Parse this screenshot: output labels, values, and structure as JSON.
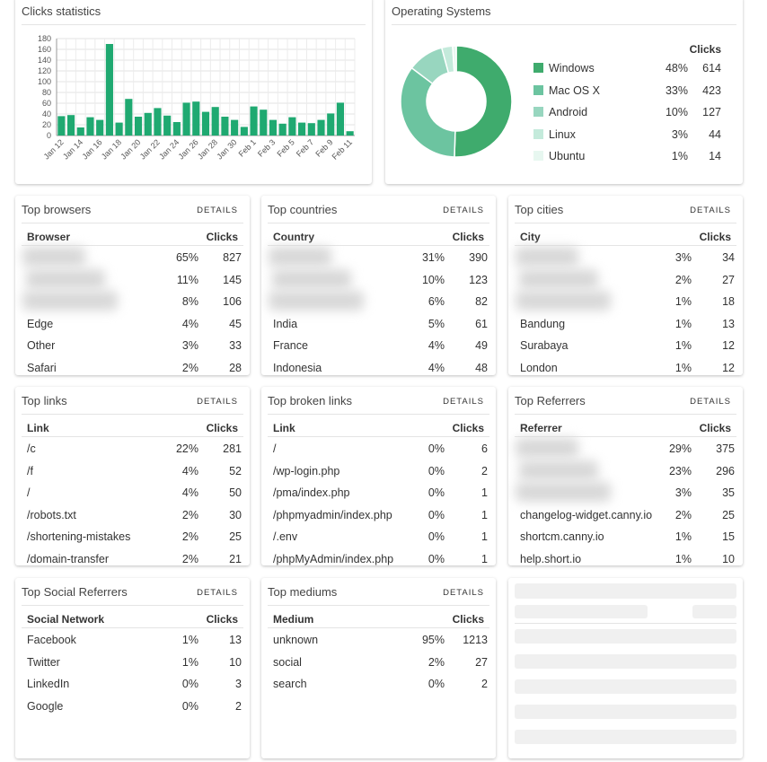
{
  "chart_data": [
    {
      "type": "bar",
      "title": "Clicks statistics",
      "categories": [
        "Jan 12",
        null,
        "Jan 14",
        null,
        "Jan 16",
        null,
        "Jan 18",
        null,
        "Jan 20",
        null,
        "Jan 22",
        null,
        "Jan 24",
        null,
        "Jan 26",
        null,
        "Jan 28",
        null,
        "Jan 30",
        null,
        "Feb 1",
        null,
        "Feb 3",
        null,
        "Feb 5",
        null,
        "Feb 7",
        null,
        "Feb 9",
        null,
        "Feb 11"
      ],
      "values": [
        36,
        38,
        15,
        34,
        29,
        170,
        24,
        68,
        35,
        42,
        51,
        37,
        25,
        61,
        63,
        44,
        53,
        35,
        29,
        16,
        54,
        48,
        29,
        22,
        34,
        24,
        23,
        29,
        41,
        61,
        8
      ],
      "color": "#1fa971",
      "ylim": [
        0,
        180
      ],
      "yticks": [
        0,
        20,
        40,
        60,
        80,
        100,
        120,
        140,
        160,
        180
      ],
      "grid": true
    },
    {
      "type": "pie",
      "title": "Operating Systems",
      "value_header": "Clicks",
      "categories": [
        "Windows",
        "Mac OS X",
        "Android",
        "Linux",
        "Ubuntu"
      ],
      "values": [
        48,
        33,
        10,
        3,
        1
      ],
      "value_labels": [
        "48%",
        "33%",
        "10%",
        "3%",
        "1%"
      ],
      "clicks": [
        614,
        423,
        127,
        44,
        14
      ],
      "colors": [
        "#3fab6d",
        "#6cc4a0",
        "#98d6bf",
        "#c4eadb",
        "#e7f7f0"
      ]
    }
  ],
  "cards": [
    {
      "title": "Top browsers",
      "action": "DETAILS",
      "columns": [
        "Browser",
        "Clicks"
      ],
      "rows": [
        [
          null,
          "65%",
          827
        ],
        [
          null,
          "11%",
          145
        ],
        [
          null,
          "8%",
          106
        ],
        [
          "Edge",
          "4%",
          45
        ],
        [
          "Other",
          "3%",
          33
        ],
        [
          "Safari",
          "2%",
          28
        ]
      ]
    },
    {
      "title": "Top countries",
      "action": "DETAILS",
      "columns": [
        "Country",
        "Clicks"
      ],
      "rows": [
        [
          null,
          "31%",
          390
        ],
        [
          null,
          "10%",
          123
        ],
        [
          null,
          "6%",
          82
        ],
        [
          "India",
          "5%",
          61
        ],
        [
          "France",
          "4%",
          49
        ],
        [
          "Indonesia",
          "4%",
          48
        ]
      ]
    },
    {
      "title": "Top cities",
      "action": "DETAILS",
      "columns": [
        "City",
        "Clicks"
      ],
      "rows": [
        [
          null,
          "3%",
          34
        ],
        [
          null,
          "2%",
          27
        ],
        [
          null,
          "1%",
          18
        ],
        [
          "Bandung",
          "1%",
          13
        ],
        [
          "Surabaya",
          "1%",
          12
        ],
        [
          "London",
          "1%",
          12
        ]
      ]
    },
    {
      "title": "Top links",
      "action": "DETAILS",
      "columns": [
        "Link",
        "Clicks"
      ],
      "rows": [
        [
          "/c",
          "22%",
          281
        ],
        [
          "/f",
          "4%",
          52
        ],
        [
          "/",
          "4%",
          50
        ],
        [
          "/robots.txt",
          "2%",
          30
        ],
        [
          "/shortening-mistakes",
          "2%",
          25
        ],
        [
          "/domain-transfer",
          "2%",
          21
        ]
      ]
    },
    {
      "title": "Top broken links",
      "action": "DETAILS",
      "columns": [
        "Link",
        "Clicks"
      ],
      "rows": [
        [
          "/",
          "0%",
          6
        ],
        [
          "/wp-login.php",
          "0%",
          2
        ],
        [
          "/pma/index.php",
          "0%",
          1
        ],
        [
          "/phpmyadmin/index.php",
          "0%",
          1
        ],
        [
          "/.env",
          "0%",
          1
        ],
        [
          "/phpMyAdmin/index.php",
          "0%",
          1
        ]
      ]
    },
    {
      "title": "Top Referrers",
      "action": "DETAILS",
      "columns": [
        "Referrer",
        "Clicks"
      ],
      "rows": [
        [
          null,
          "29%",
          375
        ],
        [
          null,
          "23%",
          296
        ],
        [
          null,
          "3%",
          35
        ],
        [
          "changelog-widget.canny.io",
          "2%",
          25
        ],
        [
          "shortcm.canny.io",
          "1%",
          15
        ],
        [
          "help.short.io",
          "1%",
          10
        ]
      ]
    },
    {
      "title": "Top Social Referrers",
      "action": "DETAILS",
      "columns": [
        "Social Network",
        "Clicks"
      ],
      "rows": [
        [
          "Facebook",
          "1%",
          13
        ],
        [
          "Twitter",
          "1%",
          10
        ],
        [
          "LinkedIn",
          "0%",
          3
        ],
        [
          "Google",
          "0%",
          2
        ]
      ]
    },
    {
      "title": "Top mediums",
      "action": "DETAILS",
      "columns": [
        "Medium",
        "Clicks"
      ],
      "rows": [
        [
          "unknown",
          "95%",
          1213
        ],
        [
          "social",
          "2%",
          27
        ],
        [
          "search",
          "0%",
          2
        ]
      ]
    }
  ]
}
